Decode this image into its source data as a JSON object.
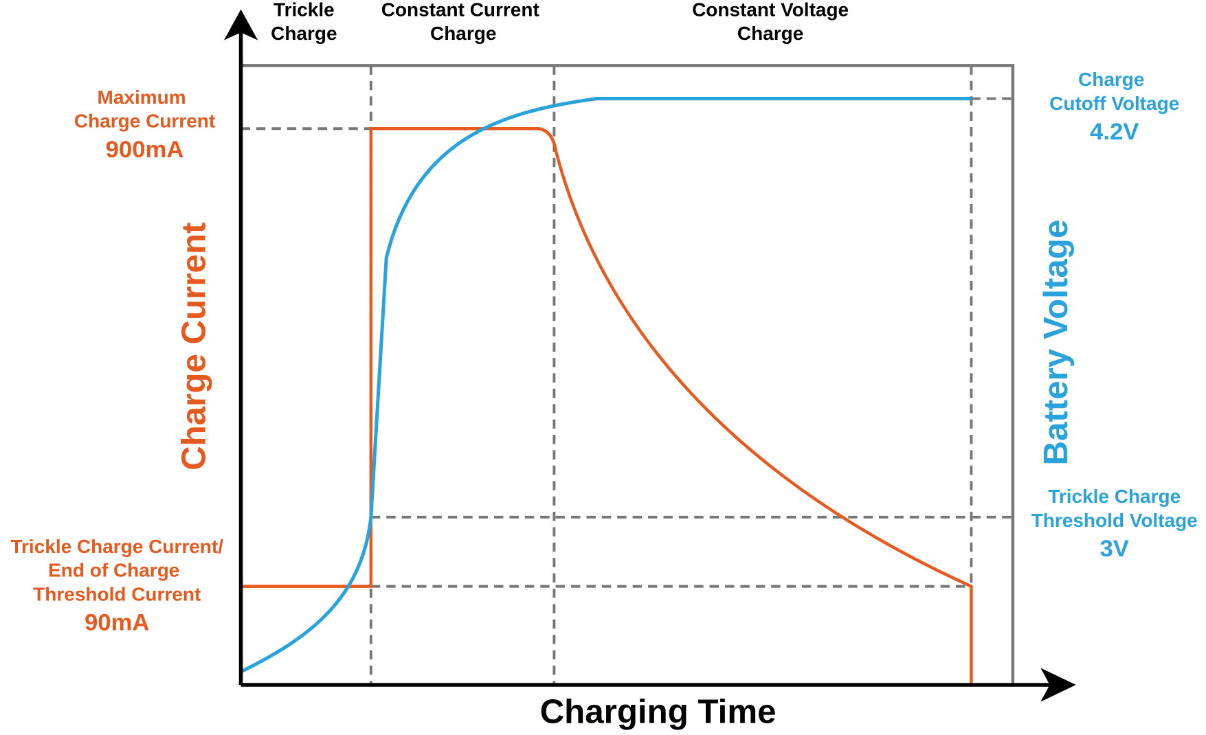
{
  "header": {
    "phases": [
      {
        "lines": [
          "Trickle",
          "Charge"
        ]
      },
      {
        "lines": [
          "Constant Current",
          "Charge"
        ]
      },
      {
        "lines": [
          "Constant Voltage",
          "Charge"
        ]
      }
    ]
  },
  "current_axis": {
    "title": "Charge Current",
    "max": {
      "lines": [
        "Maximum",
        "Charge Current"
      ],
      "value": "900mA"
    },
    "trickle": {
      "lines": [
        "Trickle Charge Current/",
        "End of Charge",
        "Threshold Current"
      ],
      "value": "90mA"
    }
  },
  "voltage_axis": {
    "title": "Battery Voltage",
    "cutoff": {
      "lines": [
        "Charge",
        "Cutoff Voltage"
      ],
      "value": "4.2V"
    },
    "threshold": {
      "lines": [
        "Trickle Charge",
        "Threshold Voltage"
      ],
      "value": "3V"
    }
  },
  "x_axis": {
    "title": "Charging Time"
  }
}
